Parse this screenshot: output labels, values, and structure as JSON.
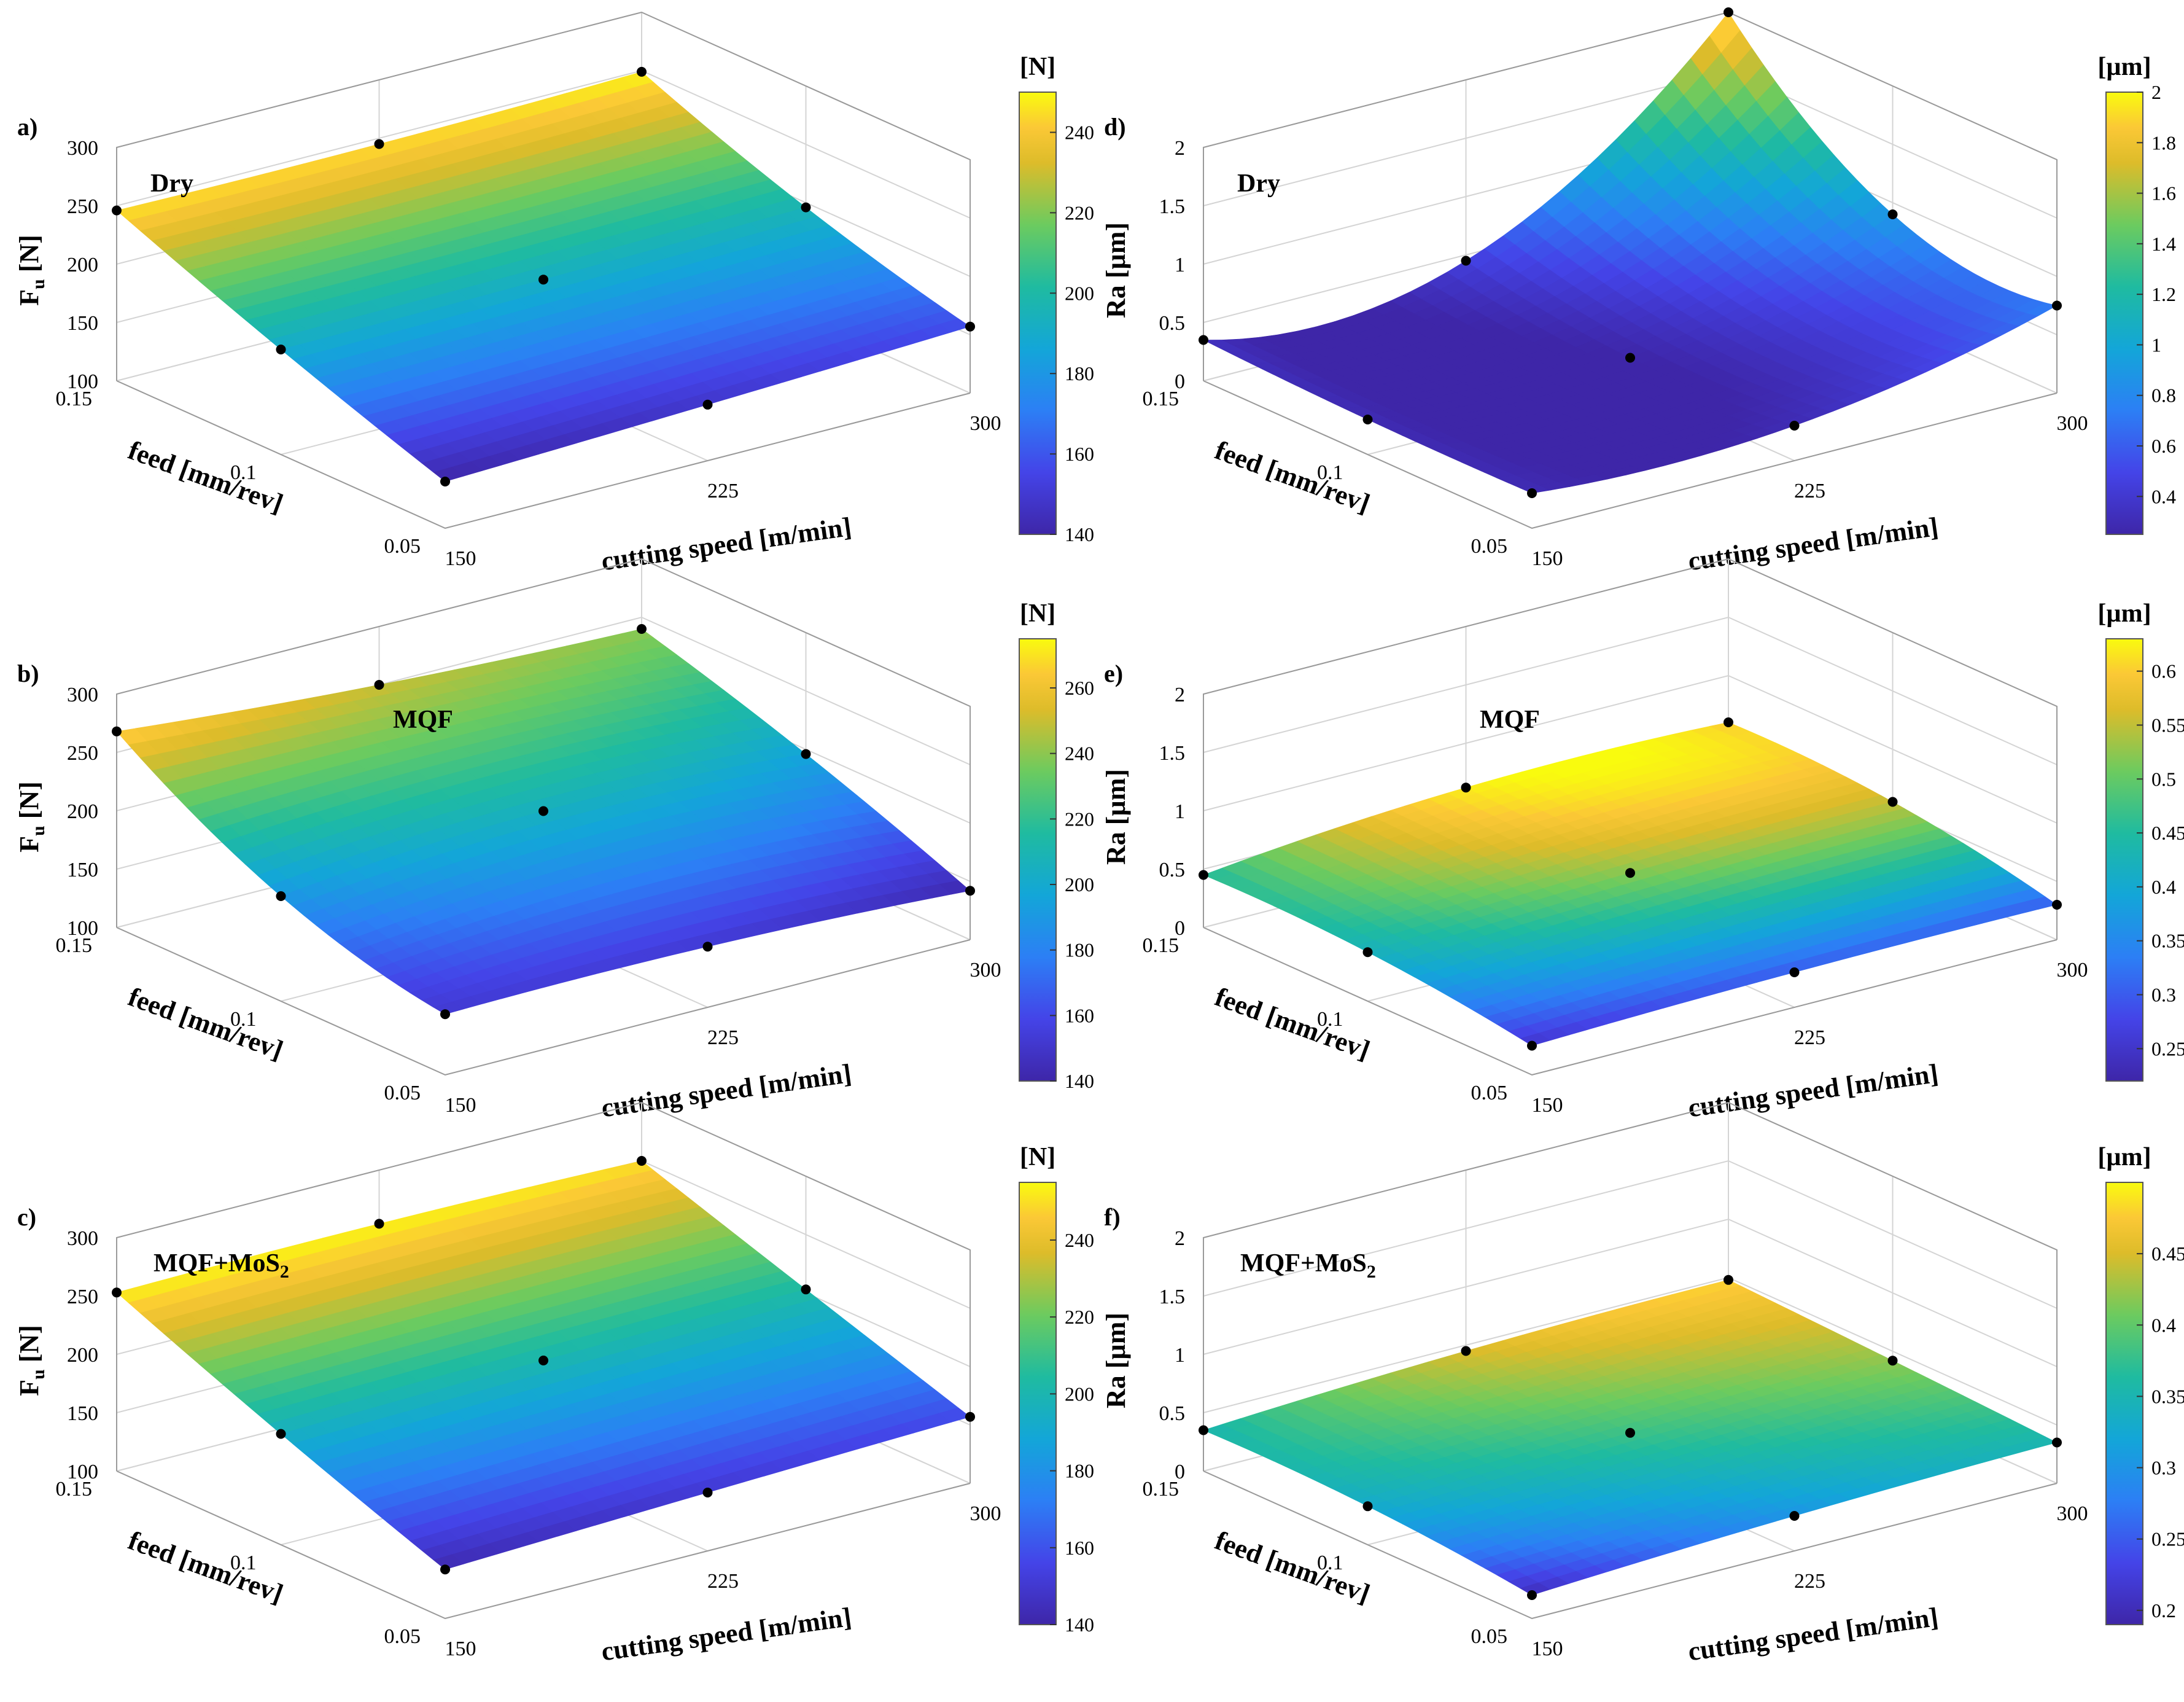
{
  "figure": {
    "x_axis_label": "cutting speed  [m/min]",
    "y_axis_label": "feed [mm/rev]",
    "x_ticks": [
      150,
      225,
      300
    ],
    "y_ticks": [
      0.05,
      0.1,
      0.15
    ]
  },
  "chart_data": [
    {
      "panel": "a)",
      "type": "surface",
      "series_label": "Dry",
      "zlabel": "F",
      "zlabel_sub": "u",
      "zlabel_unit": " [N]",
      "colorbar_unit": "[N]",
      "zlim": [
        100,
        300
      ],
      "z_ticks": [
        100,
        150,
        200,
        250,
        300
      ],
      "clim": [
        140,
        250
      ],
      "colorbar_ticks": [
        140,
        160,
        180,
        200,
        220,
        240
      ],
      "x": [
        150,
        225,
        300
      ],
      "y": [
        0.05,
        0.1,
        0.15
      ],
      "z": [
        [
          140,
          148,
          157
        ],
        [
          190,
          192,
          196
        ],
        [
          246,
          245,
          249
        ]
      ]
    },
    {
      "panel": "b)",
      "type": "surface",
      "series_label": "MQF",
      "zlabel": "F",
      "zlabel_sub": "u",
      "zlabel_unit": " [N]",
      "colorbar_unit": "[N]",
      "zlim": [
        100,
        300
      ],
      "z_ticks": [
        100,
        150,
        200,
        250,
        300
      ],
      "clim": [
        140,
        275
      ],
      "colorbar_ticks": [
        140,
        160,
        180,
        200,
        220,
        240,
        260
      ],
      "x": [
        150,
        225,
        300
      ],
      "y": [
        0.05,
        0.1,
        0.15
      ],
      "z": [
        [
          152,
          152,
          142
        ],
        [
          190,
          205,
          196
        ],
        [
          268,
          250,
          240
        ]
      ]
    },
    {
      "panel": "c)",
      "type": "surface",
      "series_label": "MQF+MoS",
      "series_label_sub": "2",
      "zlabel": "F",
      "zlabel_sub": "u",
      "zlabel_unit": " [N]",
      "colorbar_unit": "[N]",
      "zlim": [
        100,
        300
      ],
      "z_ticks": [
        100,
        150,
        200,
        250,
        300
      ],
      "clim": [
        140,
        255
      ],
      "colorbar_ticks": [
        140,
        160,
        180,
        200,
        220,
        240
      ],
      "x": [
        150,
        225,
        300
      ],
      "y": [
        0.05,
        0.1,
        0.15
      ],
      "z": [
        [
          142,
          150,
          157
        ],
        [
          195,
          200,
          203
        ],
        [
          253,
          254,
          250
        ]
      ]
    },
    {
      "panel": "d)",
      "type": "surface",
      "series_label": "Dry",
      "zlabel": "Ra [µm]",
      "colorbar_unit": "[µm]",
      "zlim": [
        0,
        2
      ],
      "z_ticks": [
        0,
        0.5,
        1,
        1.5,
        2
      ],
      "clim": [
        0.25,
        2.0
      ],
      "colorbar_ticks": [
        0.4,
        0.6,
        0.8,
        1,
        1.2,
        1.4,
        1.6,
        1.8,
        2
      ],
      "x": [
        150,
        225,
        300
      ],
      "y": [
        0.05,
        0.1,
        0.15
      ],
      "z": [
        [
          0.3,
          0.3,
          0.75
        ],
        [
          0.3,
          0.25,
          0.9
        ],
        [
          0.35,
          0.45,
          2.0
        ]
      ]
    },
    {
      "panel": "e)",
      "type": "surface",
      "series_label": "MQF",
      "zlabel": "Ra [µm]",
      "colorbar_unit": "[µm]",
      "zlim": [
        0,
        2
      ],
      "z_ticks": [
        0,
        0.5,
        1,
        1.5,
        2
      ],
      "clim": [
        0.22,
        0.63
      ],
      "colorbar_ticks": [
        0.25,
        0.3,
        0.35,
        0.4,
        0.45,
        0.5,
        0.55,
        0.6
      ],
      "x": [
        150,
        225,
        300
      ],
      "y": [
        0.05,
        0.1,
        0.15
      ],
      "z": [
        [
          0.25,
          0.3,
          0.3
        ],
        [
          0.42,
          0.52,
          0.55
        ],
        [
          0.45,
          0.62,
          0.6
        ]
      ]
    },
    {
      "panel": "f)",
      "type": "surface",
      "series_label": "MQF+MoS",
      "series_label_sub": "2",
      "zlabel": "Ra [µm]",
      "colorbar_unit": "[µm]",
      "zlim": [
        0,
        2
      ],
      "z_ticks": [
        0,
        0.5,
        1,
        1.5,
        2
      ],
      "clim": [
        0.19,
        0.5
      ],
      "colorbar_ticks": [
        0.2,
        0.25,
        0.3,
        0.35,
        0.4,
        0.45
      ],
      "x": [
        150,
        225,
        300
      ],
      "y": [
        0.05,
        0.1,
        0.15
      ],
      "z": [
        [
          0.2,
          0.3,
          0.35
        ],
        [
          0.33,
          0.38,
          0.42
        ],
        [
          0.35,
          0.45,
          0.48
        ]
      ]
    }
  ]
}
